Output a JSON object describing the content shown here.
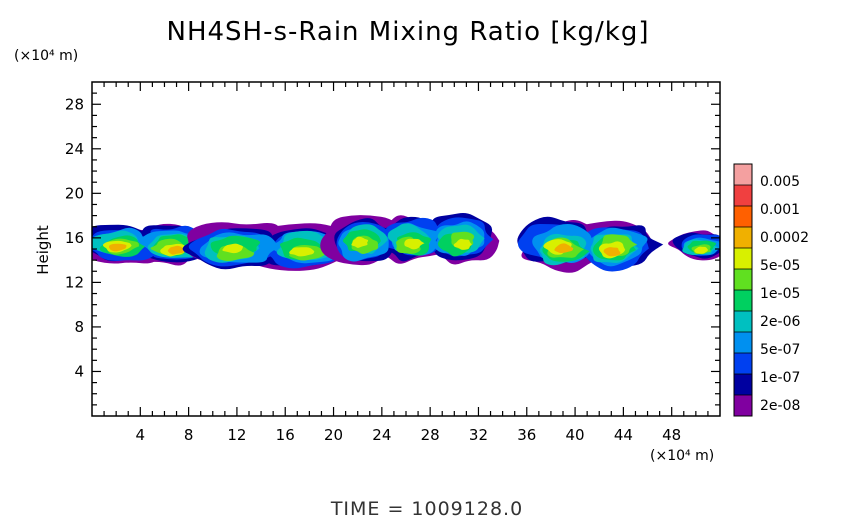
{
  "chart_data": {
    "type": "heatmap",
    "title": "NH4SH-s-Rain Mixing Ratio [kg/kg]",
    "ylabel": "Height",
    "y_unit": "(×10⁴ m)",
    "x_unit": "(×10⁴ m)",
    "xlim": [
      0,
      52
    ],
    "ylim": [
      0,
      30
    ],
    "x_ticks": [
      4,
      8,
      12,
      16,
      20,
      24,
      28,
      32,
      36,
      40,
      44,
      48
    ],
    "y_ticks": [
      4,
      8,
      12,
      16,
      20,
      24,
      28
    ],
    "colorbar": {
      "levels": [
        "0.005",
        "0.001",
        "0.0002",
        "5e-05",
        "1e-05",
        "2e-06",
        "5e-07",
        "1e-07",
        "2e-08"
      ],
      "colors": [
        "#f4a0a0",
        "#f04040",
        "#ff6000",
        "#f0b000",
        "#d8f000",
        "#60e020",
        "#00d060",
        "#00c0c0",
        "#0090f0",
        "#0040f0",
        "#0000a0",
        "#8000a0"
      ]
    },
    "cloud_cells": [
      {
        "x_range": [
          0,
          9
        ],
        "y_range": [
          13.8,
          17.2
        ],
        "peak": "0.0002"
      },
      {
        "x_range": [
          9,
          20.5
        ],
        "y_range": [
          13.2,
          17.2
        ],
        "peak": "5e-05"
      },
      {
        "x_range": [
          20.5,
          32.5
        ],
        "y_range": [
          13.8,
          18.0
        ],
        "peak": "5e-05"
      },
      {
        "x_range": [
          36.5,
          45.5
        ],
        "y_range": [
          13.2,
          17.6
        ],
        "peak": "0.0002"
      },
      {
        "x_range": [
          49,
          52
        ],
        "y_range": [
          14.2,
          16.6
        ],
        "peak": "5e-05"
      }
    ]
  },
  "footer": {
    "time_label": "TIME = 1009128.0"
  }
}
